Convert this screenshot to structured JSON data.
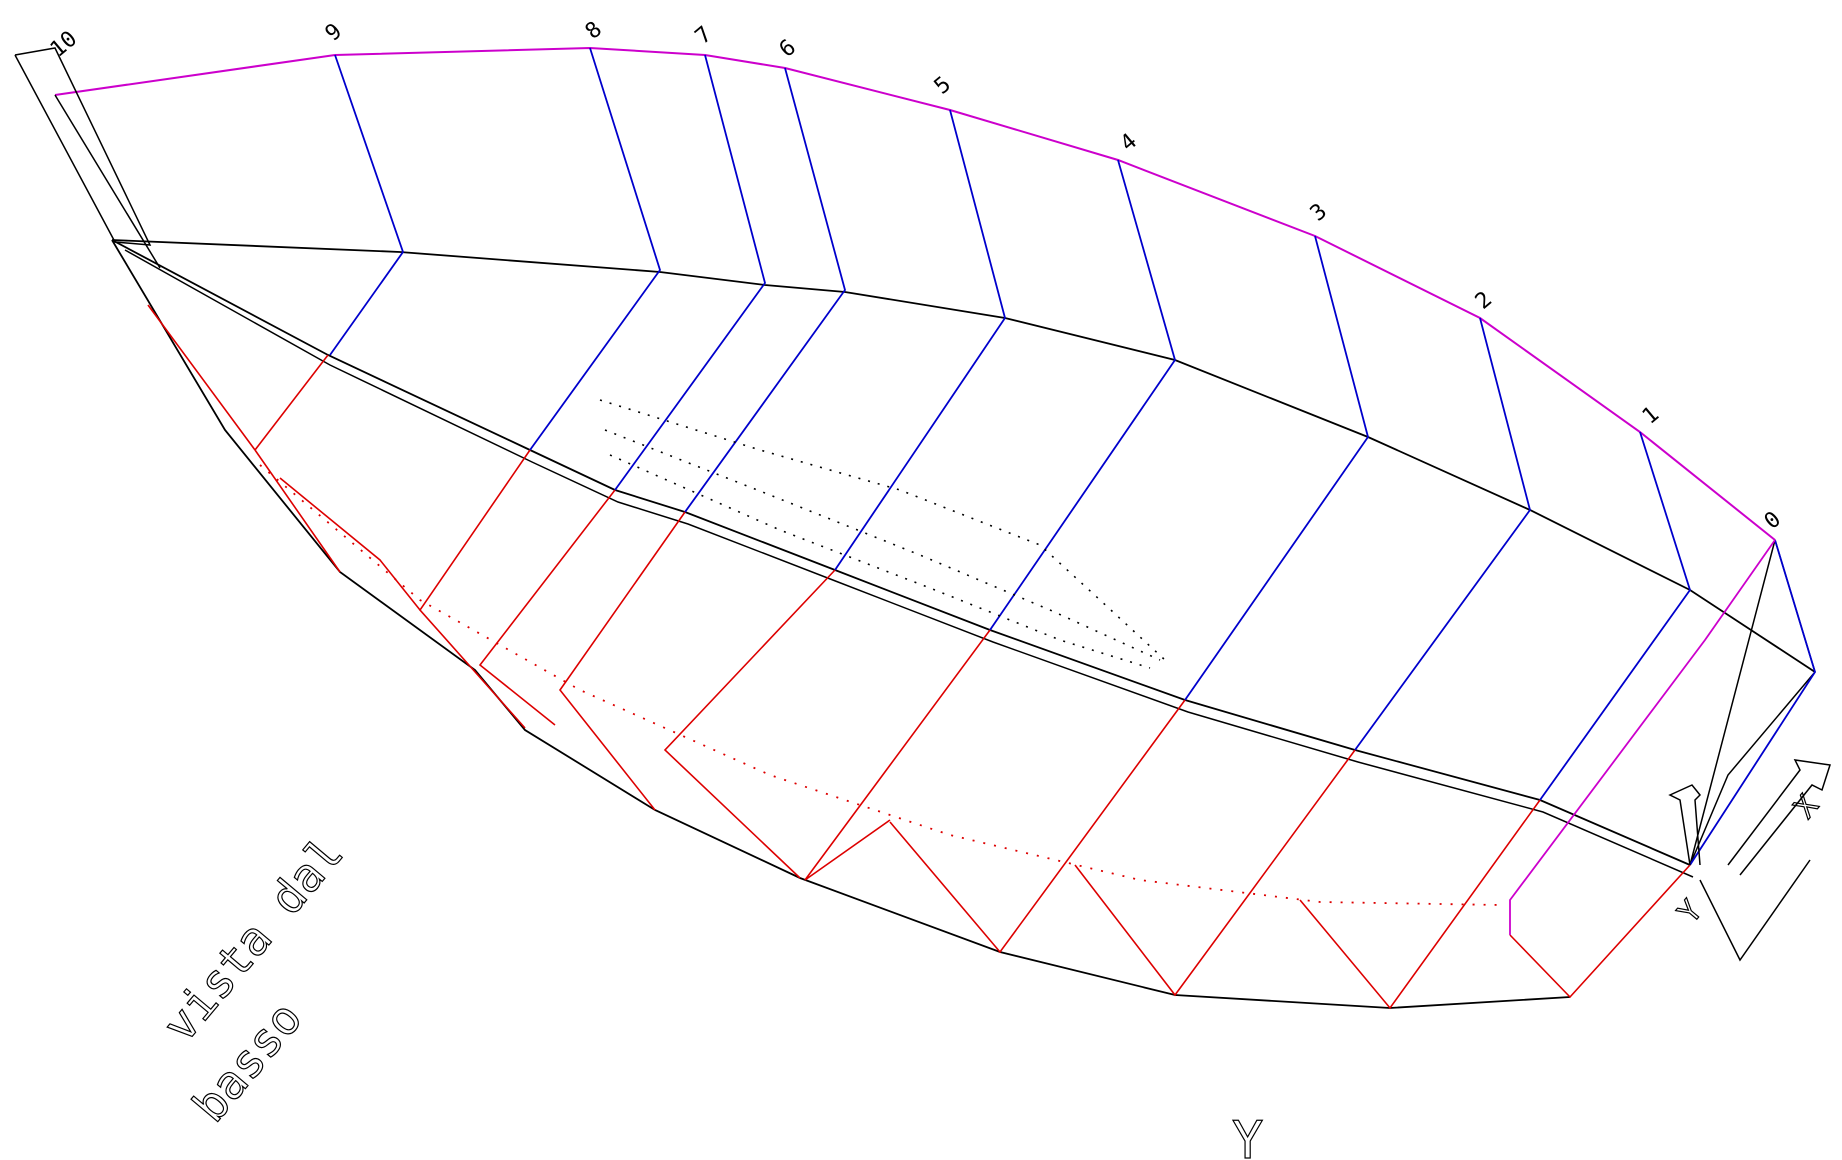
{
  "view_label": {
    "line1": "vista dal",
    "line2": "basso"
  },
  "stations": [
    "10",
    "9",
    "8",
    "7",
    "6",
    "5",
    "4",
    "3",
    "2",
    "1",
    "0"
  ],
  "axis_labels": {
    "left": "Y",
    "right": "X",
    "bottom": "Y"
  },
  "colors": {
    "sheer": "#cc00cc",
    "upper_frames": "#0000cc",
    "lower_frames": "#dd0000",
    "hull_lines": "#000000",
    "background": "#ffffff"
  }
}
